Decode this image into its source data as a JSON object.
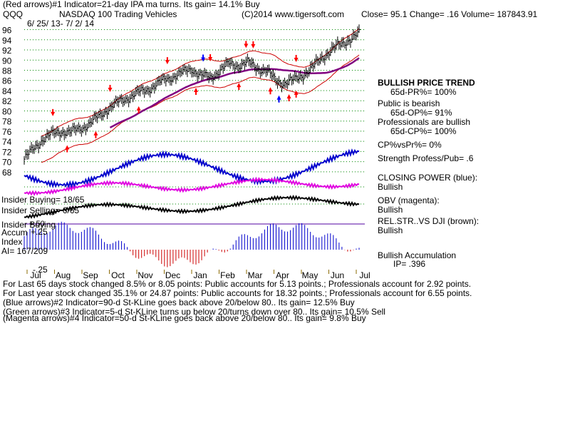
{
  "header": {
    "line1": "(Red arrows)#1 Indicator=21-day IPA ma turns.  Its gain= 14.1% Buy",
    "symbol": "QQQ",
    "name": "NASDAQ 100 Trading Vehicles",
    "copyright": "(C)2014 www.tigersoft.com",
    "close": "Close=  95.1  Change= .16 Volume= 187843.91",
    "daterange": "6/ 25/ 13-  7/ 2/ 14"
  },
  "side": {
    "trend_title": "BULLISH PRICE TREND",
    "trend_val": "65d-PR%= 100%",
    "public_title": "Public is bearish",
    "public_val": "65d-OP%= 91%",
    "pros_title": "Professionals are bullish",
    "pros_val": "65d-CP%= 100%",
    "cpvspr": "CP%vsPr%=  0%",
    "strength": "Strength Profess/Pub= .6",
    "cp_title": "CLOSING POWER (blue):",
    "cp_val": "Bullish",
    "obv_title": "OBV (magenta):",
    "obv_val": "Bullish",
    "rel_title": "REL.STR..VS DJI (brown):",
    "rel_val": "Bullish",
    "accum_title": "Bullish Accumulation",
    "accum_val": "IP=  .396"
  },
  "left_labels": {
    "insider_buying": "Insider Buying= 18/65",
    "insider_selling": "Insider Selling= 6/65",
    "insider_buying2": "Insider Buying",
    "accum": "Accum",
    "index": "Index",
    "ai": "AI= 167/209",
    "p25": "+.25",
    "p50": "+.50",
    "m25": "-.25"
  },
  "footer": {
    "line1": "For Last 65 days stock changed  8.5% or  8.05 points:  Public accounts for  5.13 points.;  Professionals account for  2.92 points.",
    "line2": "For Last year stock changed  35.1% or  24.87 points:  Public accounts for  18.32 points.;  Professionals account for  6.55 points.",
    "line3": "(Blue arrows)#2 Indicator=90-d St-KLine goes back above 20/below 80..  Its gain= 12.5% Buy",
    "line4": "(Green arrows)#3 Indicator=5-d St-KLine turns up below 20/turns down over 80..  Its gain= 10.5% Sell",
    "line5": "(Magenta arrows)#4 Indicator=50-d St-KLine goes back above 20/below 80..  Its gain= 9.8% Buy"
  },
  "colors": {
    "price": "#000000",
    "bands": "#cc0000",
    "ma": "#800080",
    "closing_power": "#0000cc",
    "obv": "#e000e0",
    "rel_strength": "#000000",
    "accum_pos": "#0000cc",
    "accum_neg": "#cc0000",
    "grid": "#008800",
    "sell_arrow": "#ff0000",
    "buy_arrow": "#ff0000",
    "blue_arrow": "#0000ff"
  },
  "chart_data": {
    "type": "line",
    "y_ticks": [
      68,
      70,
      72,
      74,
      76,
      78,
      80,
      82,
      84,
      86,
      88,
      90,
      92,
      94,
      96
    ],
    "ylim": [
      67,
      96.5
    ],
    "x_labels": [
      "Jul",
      "Aug",
      "Sep",
      "Oct",
      "Nov",
      "Dec",
      "Jan",
      "Feb",
      "Mar",
      "Apr",
      "May",
      "Jun",
      "Jul"
    ],
    "grid": true,
    "series": [
      {
        "values": [
          70.5,
          72.5,
          74.5,
          75.4,
          76.0,
          75.8,
          76.5,
          77.5,
          78.8,
          80.5,
          81.5,
          82.5,
          83.4,
          84.0,
          85.0,
          86.0,
          86.8,
          87.5,
          88.3,
          87.0,
          86.5,
          88.0,
          89.2,
          89.0,
          89.5,
          88.5,
          88.0,
          86.0,
          85.5,
          86.0,
          87.2,
          88.5,
          90.5,
          92.0,
          93.0,
          94.2,
          95.1
        ]
      }
    ]
  }
}
